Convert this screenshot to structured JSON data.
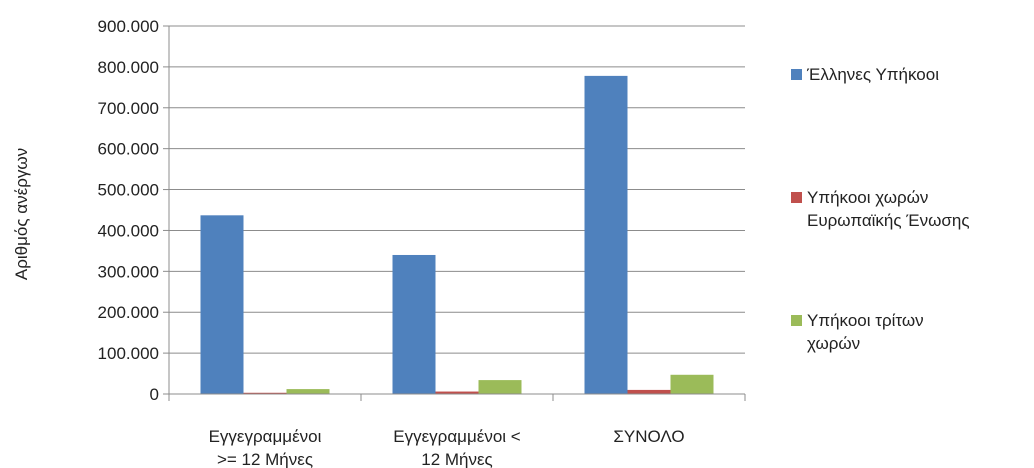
{
  "chart_data": {
    "type": "bar",
    "title": "",
    "ylabel": "Αριθμός ανέργων",
    "xlabel": "",
    "ylim": [
      0,
      900000
    ],
    "yticks": [
      0,
      100000,
      200000,
      300000,
      400000,
      500000,
      600000,
      700000,
      800000,
      900000
    ],
    "ytick_labels": [
      "0",
      "100.000",
      "200.000",
      "300.000",
      "400.000",
      "500.000",
      "600.000",
      "700.000",
      "800.000",
      "900.000"
    ],
    "grid": "horizontal",
    "legend_position": "right",
    "categories": [
      [
        "Εγγεγραμμένοι",
        ">= 12 Μήνες"
      ],
      [
        "Εγγεγραμμένοι  <",
        "12 Μήνες"
      ],
      [
        "ΣΥΝΟΛΟ"
      ]
    ],
    "series": [
      {
        "name": [
          "Έλληνες Υπήκοοι"
        ],
        "color": "#4f81bd",
        "values": [
          437000,
          340000,
          778000
        ]
      },
      {
        "name": [
          "Υπήκοοι χωρών",
          "Ευρωπαϊκής Ένωσης"
        ],
        "color": "#c0504d",
        "values": [
          3000,
          6000,
          10000
        ]
      },
      {
        "name": [
          "Υπήκοοι τρίτων",
          "χωρών"
        ],
        "color": "#9bbb59",
        "values": [
          12000,
          34000,
          47000
        ]
      }
    ]
  }
}
